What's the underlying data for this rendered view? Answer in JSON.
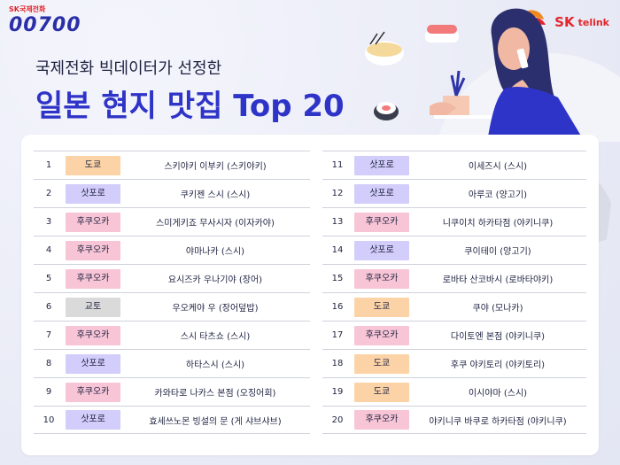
{
  "brand": {
    "small": "SK국제전화",
    "big": "00700",
    "sk": "SK",
    "telink": "telink"
  },
  "header": {
    "subtitle": "국제전화 빅데이터가 선정한",
    "title": "일본 현지 맛집 Top 20"
  },
  "colors": {
    "tokyo": "#fcd3a6",
    "sapporo": "#d2cdfa",
    "fukuoka": "#f8c5d6",
    "kyoto": "#dadada",
    "title": "#2f34c8"
  },
  "left": [
    {
      "rank": "1",
      "city": "도쿄",
      "cls": "tokyo",
      "name": "스키야키 이부키 (스키야키)"
    },
    {
      "rank": "2",
      "city": "삿포로",
      "cls": "sapporo",
      "name": "쿠키젠 스시 (스시)"
    },
    {
      "rank": "3",
      "city": "후쿠오카",
      "cls": "fukuoka",
      "name": "스미게키죠 무사시자 (이자카야)"
    },
    {
      "rank": "4",
      "city": "후쿠오카",
      "cls": "fukuoka",
      "name": "야마나카 (스시)"
    },
    {
      "rank": "5",
      "city": "후쿠오카",
      "cls": "fukuoka",
      "name": "요시즈카 우나기야 (장어)"
    },
    {
      "rank": "6",
      "city": "교토",
      "cls": "kyoto",
      "name": "우오케야 우 (장어덮밥)"
    },
    {
      "rank": "7",
      "city": "후쿠오카",
      "cls": "fukuoka",
      "name": "스시 타츠쇼 (스시)"
    },
    {
      "rank": "8",
      "city": "삿포로",
      "cls": "sapporo",
      "name": "하타스시 (스시)"
    },
    {
      "rank": "9",
      "city": "후쿠오카",
      "cls": "fukuoka",
      "name": "카와타로 나카스 본점 (오징어회)"
    },
    {
      "rank": "10",
      "city": "삿포로",
      "cls": "sapporo",
      "name": "효세쓰노몬 빙설의 문 (게 샤브샤브)"
    }
  ],
  "right": [
    {
      "rank": "11",
      "city": "삿포로",
      "cls": "sapporo",
      "name": "이세즈시 (스시)"
    },
    {
      "rank": "12",
      "city": "삿포로",
      "cls": "sapporo",
      "name": "아루코 (양고기)"
    },
    {
      "rank": "13",
      "city": "후쿠오카",
      "cls": "fukuoka",
      "name": "니쿠이치 하카타점 (야키니쿠)"
    },
    {
      "rank": "14",
      "city": "삿포로",
      "cls": "sapporo",
      "name": "쿠이테이 (양고기)"
    },
    {
      "rank": "15",
      "city": "후쿠오카",
      "cls": "fukuoka",
      "name": "로바타 산코바시 (로바타야키)"
    },
    {
      "rank": "16",
      "city": "도쿄",
      "cls": "tokyo",
      "name": "쿠야 (모나카)"
    },
    {
      "rank": "17",
      "city": "후쿠오카",
      "cls": "fukuoka",
      "name": "다이토엔 본점 (야키니쿠)"
    },
    {
      "rank": "18",
      "city": "도쿄",
      "cls": "tokyo",
      "name": "후쿠 야키토리 (야키토리)"
    },
    {
      "rank": "19",
      "city": "도쿄",
      "cls": "tokyo",
      "name": "이시야마 (스시)"
    },
    {
      "rank": "20",
      "city": "후쿠오카",
      "cls": "fukuoka",
      "name": "야키니쿠 바쿠로 하카타점 (야키니쿠)"
    }
  ]
}
